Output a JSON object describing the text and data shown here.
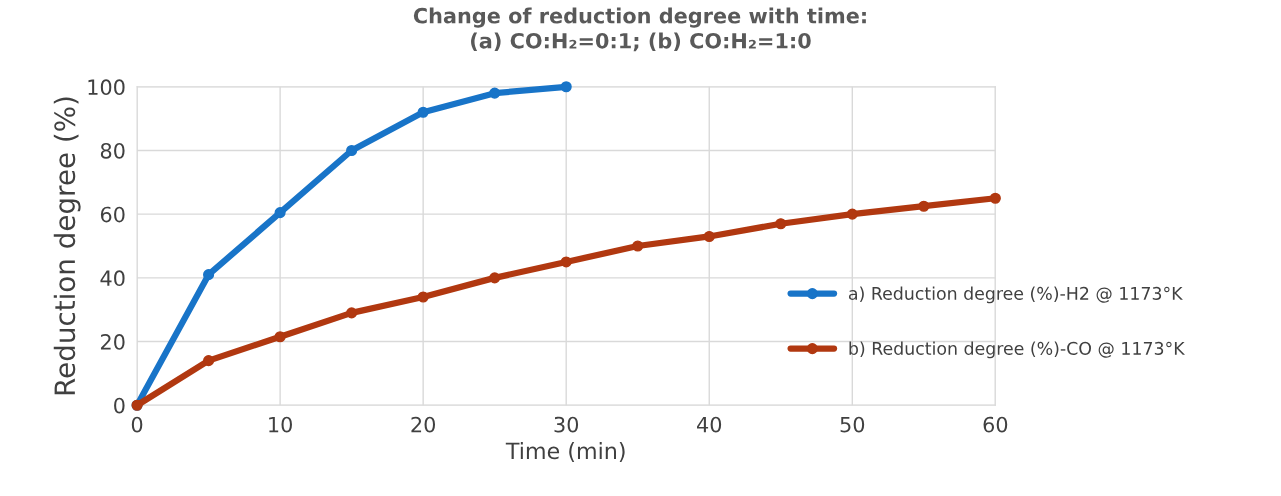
{
  "chart_data": {
    "type": "line",
    "title": "Change of reduction degree with time:\n(a) CO:H₂=0:1; (b) CO:H₂=1:0",
    "xlabel": "Time (min)",
    "ylabel": "Reduction degree (%)",
    "xlim": [
      0,
      60
    ],
    "xticks": [
      0,
      10,
      20,
      30,
      40,
      50,
      60
    ],
    "ylim": [
      0,
      100
    ],
    "yticks": [
      0,
      20,
      40,
      60,
      80,
      100
    ],
    "grid": true,
    "legend": "right",
    "marker": "circle",
    "line_style": "solid",
    "series": [
      {
        "name": "a) Reduction degree (%)-H2 @ 1173°K",
        "color": "#1874c8",
        "x": [
          0,
          5,
          10,
          15,
          20,
          25,
          30
        ],
        "values": [
          0,
          41,
          60.5,
          80,
          92,
          98,
          100
        ]
      },
      {
        "name": "b) Reduction degree (%)-CO @ 1173°K",
        "color": "#b13810",
        "x": [
          0,
          5,
          10,
          15,
          20,
          25,
          30,
          35,
          40,
          45,
          50,
          55,
          60
        ],
        "values": [
          0,
          14,
          21.5,
          29,
          34,
          40,
          45,
          50,
          53,
          57,
          60,
          62.5,
          65
        ]
      }
    ]
  }
}
